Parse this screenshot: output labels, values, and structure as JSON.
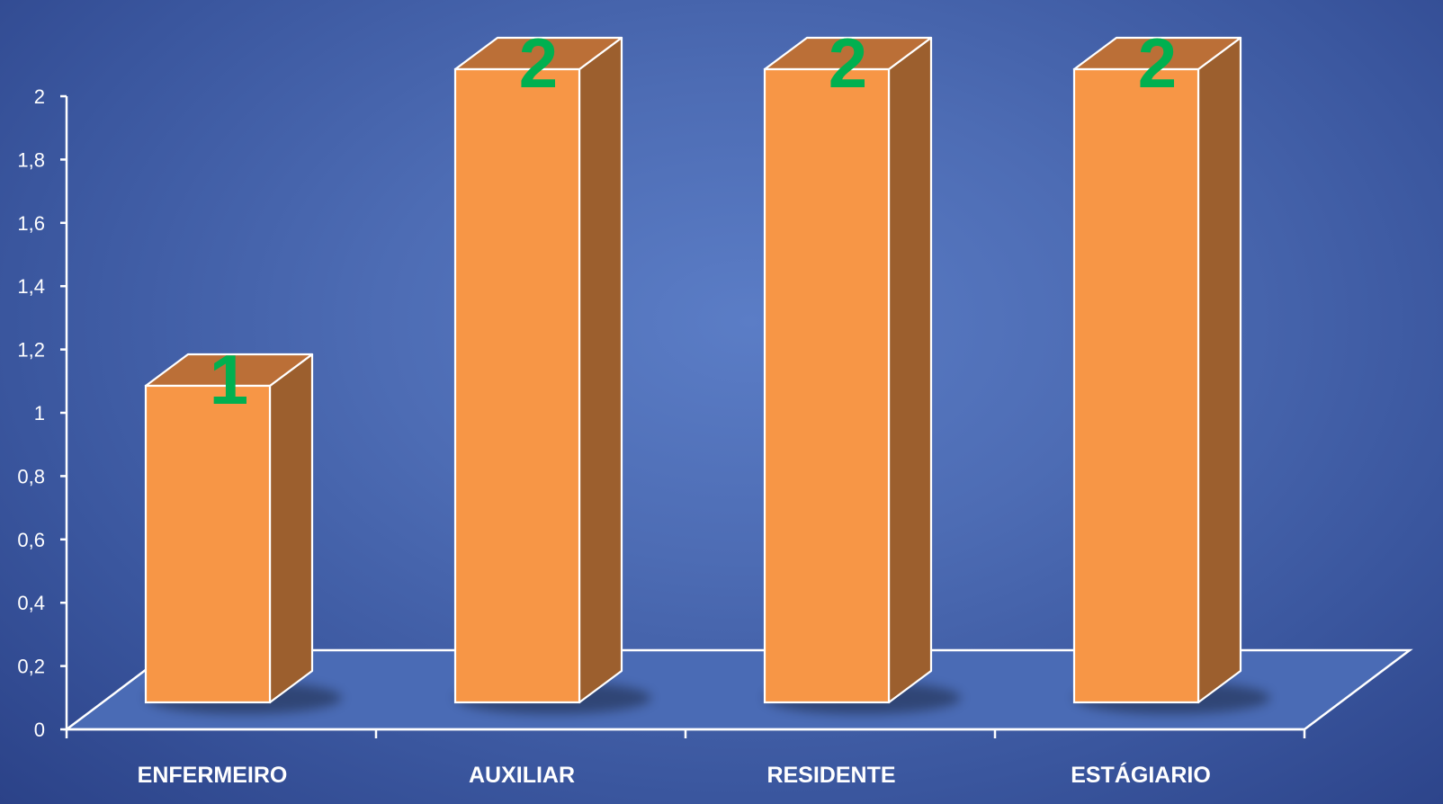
{
  "chart_data": {
    "type": "bar",
    "style": "3d-column",
    "categories": [
      "ENFERMEIRO",
      "AUXILIAR",
      "RESIDENTE",
      "ESTÁGIARIO"
    ],
    "values": [
      1,
      2,
      2,
      2
    ],
    "data_labels": [
      "1",
      "2",
      "2",
      "2"
    ],
    "y_ticks": [
      "0",
      "0,2",
      "0,4",
      "0,6",
      "0,8",
      "1",
      "1,2",
      "1,4",
      "1,6",
      "1,8",
      "2"
    ],
    "ylim": [
      0,
      2
    ],
    "title": "",
    "xlabel": "",
    "ylabel": "",
    "grid": false,
    "legend": "none",
    "colors": {
      "bar_front": "#f79646",
      "bar_top": "#bb6f37",
      "bar_side": "#9c5f2e",
      "outline": "#ffffff",
      "data_label": "#00b050",
      "axis": "#ffffff",
      "floor": "#4a6bb5"
    }
  }
}
